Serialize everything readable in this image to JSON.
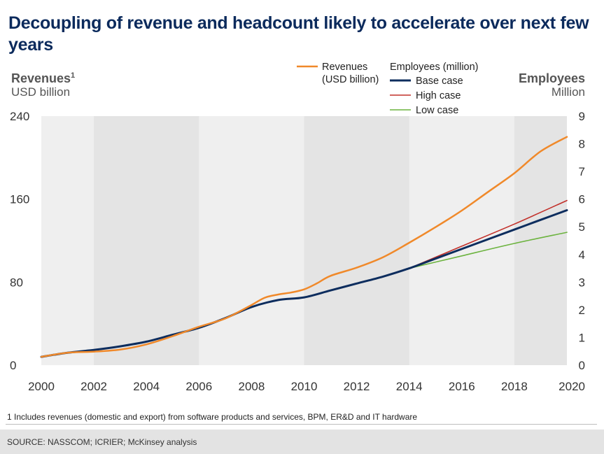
{
  "title": "Decoupling of revenue and headcount likely to accelerate over next few years",
  "footnote": "1 Includes revenues (domestic and export) from software products and services, BPM, ER&D and IT hardware",
  "source": "SOURCE: NASSCOM; ICRIER; McKinsey analysis",
  "colors": {
    "revenues": "#f0892a",
    "base": "#0d2d5e",
    "high": "#c2302a",
    "low": "#6cb33f",
    "band_dark": "#e4e4e4",
    "band_light": "#efefef"
  },
  "chart_data": {
    "type": "line",
    "left_axis": {
      "title": "Revenues",
      "title_sup": "1",
      "unit": "USD billion",
      "ticks": [
        "0",
        "80",
        "160",
        "240"
      ],
      "range": [
        0,
        240
      ]
    },
    "right_axis": {
      "title": "Employees",
      "unit": "Million",
      "ticks": [
        "0",
        "1",
        "2",
        "3",
        "4",
        "5",
        "6",
        "7",
        "8",
        "9"
      ],
      "range": [
        0,
        9
      ]
    },
    "x_axis": {
      "ticks": [
        "2000",
        "2002",
        "2004",
        "2006",
        "2008",
        "2010",
        "2012",
        "2014",
        "2016",
        "2018",
        "2020"
      ],
      "range": [
        2000,
        2020
      ]
    },
    "shaded_bands": [
      [
        2002,
        2006
      ],
      [
        2010,
        2014
      ],
      [
        2018,
        2020
      ]
    ],
    "legend": {
      "revenues_label_1": "Revenues",
      "revenues_label_2": "(USD billion)",
      "employees_header": "Employees (million)",
      "base_label": "Base case",
      "high_label": "High case",
      "low_label": "Low case"
    },
    "series": [
      {
        "name": "Revenues (USD billion)",
        "axis": "left",
        "points": [
          [
            2000,
            8
          ],
          [
            2001,
            12
          ],
          [
            2002,
            13
          ],
          [
            2003,
            15
          ],
          [
            2004,
            20
          ],
          [
            2005,
            28
          ],
          [
            2006,
            37
          ],
          [
            2007,
            45
          ],
          [
            2008,
            58
          ],
          [
            2008.5,
            65
          ],
          [
            2009,
            68
          ],
          [
            2009.5,
            70
          ],
          [
            2010,
            73
          ],
          [
            2010.5,
            79
          ],
          [
            2011,
            86
          ],
          [
            2012,
            94
          ],
          [
            2013,
            104
          ],
          [
            2014,
            118
          ],
          [
            2015,
            133
          ],
          [
            2016,
            149
          ],
          [
            2017,
            167
          ],
          [
            2018,
            185
          ],
          [
            2019,
            206
          ],
          [
            2020,
            220
          ]
        ]
      },
      {
        "name": "Base case",
        "axis": "right",
        "points": [
          [
            2000,
            0.3
          ],
          [
            2001,
            0.45
          ],
          [
            2002,
            0.55
          ],
          [
            2003,
            0.68
          ],
          [
            2004,
            0.85
          ],
          [
            2005,
            1.1
          ],
          [
            2006,
            1.35
          ],
          [
            2007,
            1.7
          ],
          [
            2008,
            2.1
          ],
          [
            2009,
            2.35
          ],
          [
            2010,
            2.45
          ],
          [
            2011,
            2.7
          ],
          [
            2012,
            2.95
          ],
          [
            2013,
            3.2
          ],
          [
            2014,
            3.5
          ],
          [
            2015,
            3.85
          ],
          [
            2016,
            4.2
          ],
          [
            2017,
            4.55
          ],
          [
            2018,
            4.9
          ],
          [
            2019,
            5.25
          ],
          [
            2020,
            5.6
          ]
        ]
      },
      {
        "name": "High case",
        "axis": "right",
        "points": [
          [
            2014,
            3.5
          ],
          [
            2016,
            4.3
          ],
          [
            2018,
            5.1
          ],
          [
            2020,
            5.95
          ]
        ]
      },
      {
        "name": "Low case",
        "axis": "right",
        "points": [
          [
            2014,
            3.5
          ],
          [
            2016,
            3.95
          ],
          [
            2018,
            4.4
          ],
          [
            2020,
            4.8
          ]
        ]
      }
    ]
  }
}
